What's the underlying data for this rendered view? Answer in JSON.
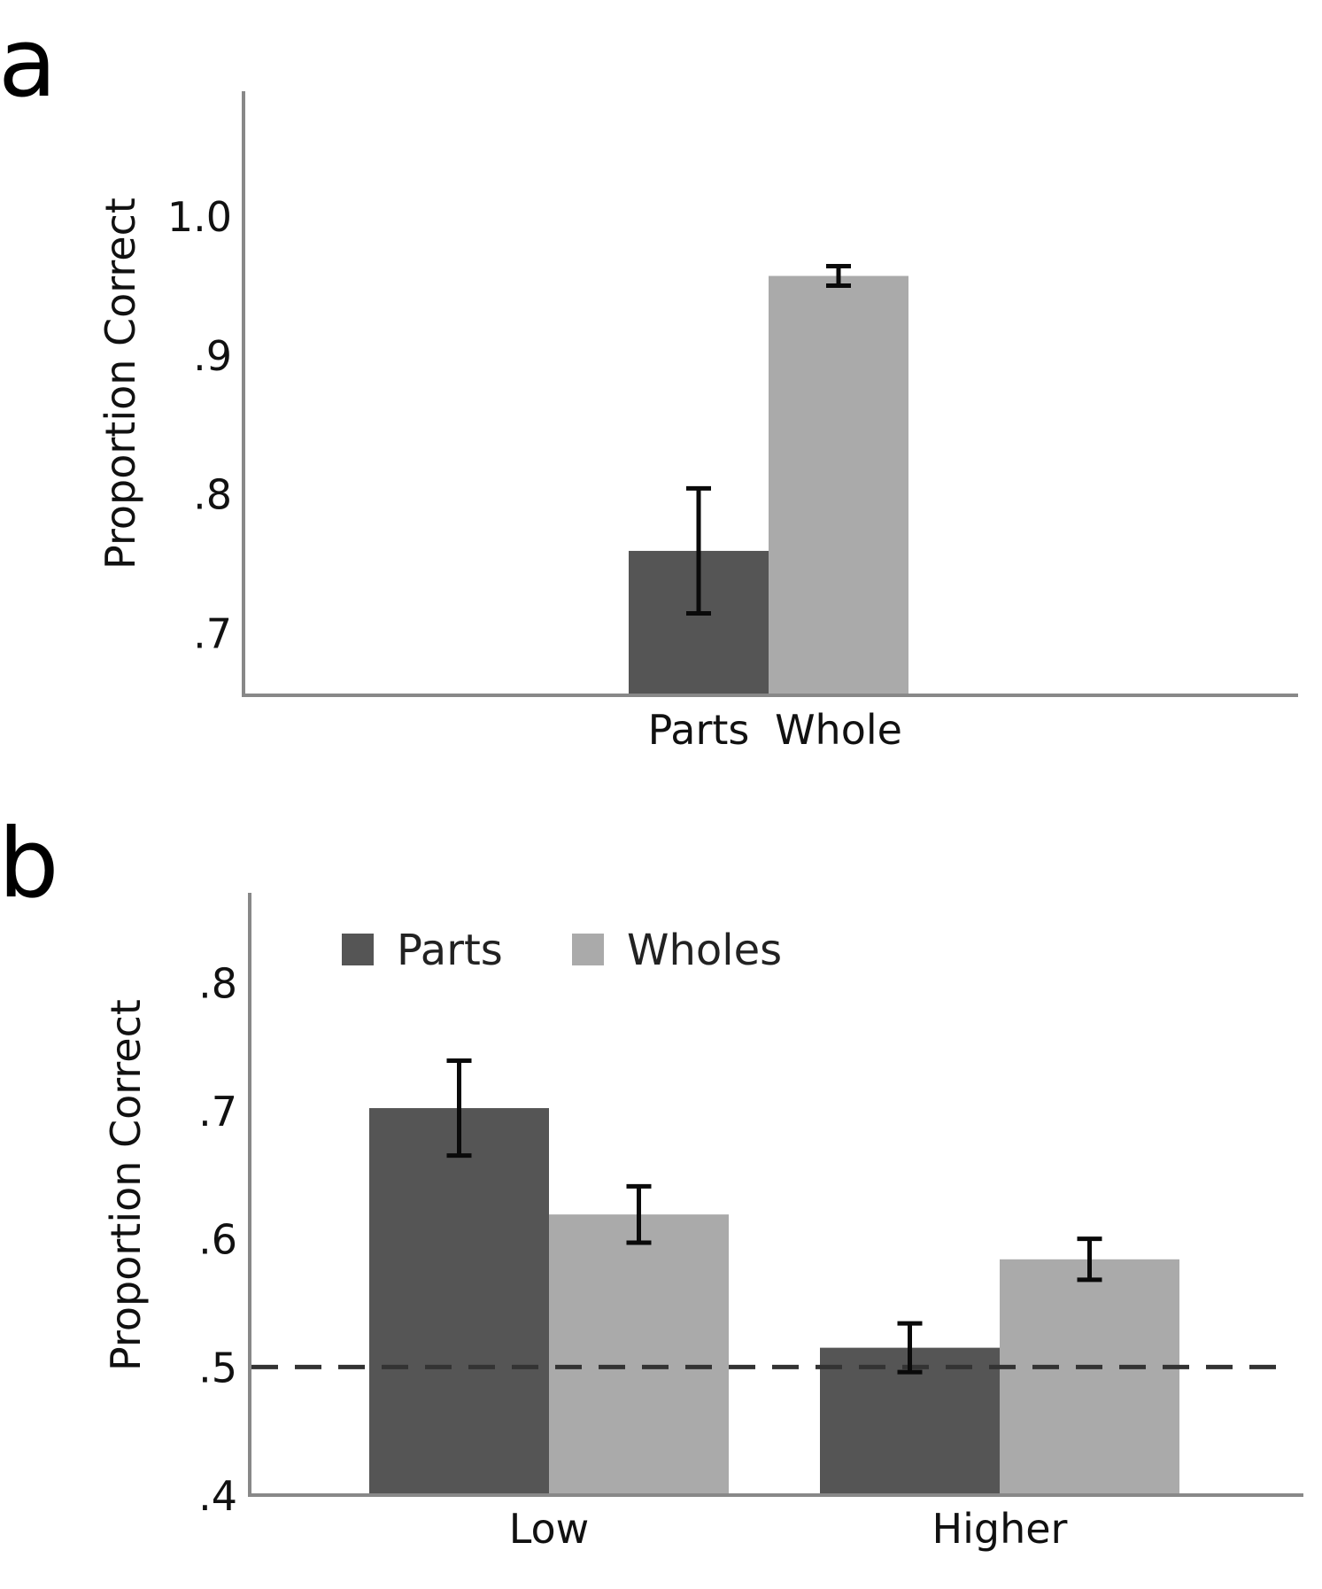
{
  "chart_data": [
    {
      "type": "bar",
      "panel_label": "a",
      "title": "",
      "xlabel": "",
      "ylabel": "Proportion Correct",
      "ylim": [
        0.655,
        1.09
      ],
      "yticks": [
        0.7,
        0.8,
        0.9,
        1.0
      ],
      "ytick_labels": [
        ".7",
        ".8",
        ".9",
        "1.0"
      ],
      "categories": [
        "Parts",
        "Whole"
      ],
      "values": [
        0.759,
        0.957
      ],
      "errors": [
        0.045,
        0.007
      ],
      "colors": [
        "#555555",
        "#aaaaaa"
      ],
      "grid": false
    },
    {
      "type": "bar",
      "panel_label": "b",
      "title": "",
      "xlabel": "",
      "ylabel": "Proportion Correct",
      "ylim": [
        0.4,
        0.87
      ],
      "yticks": [
        0.4,
        0.5,
        0.6,
        0.7,
        0.8
      ],
      "ytick_labels": [
        ".4",
        ".5",
        ".6",
        ".7",
        ".8"
      ],
      "categories": [
        "Low",
        "Higher"
      ],
      "series": [
        {
          "name": "Parts",
          "values": [
            0.702,
            0.515
          ],
          "errors": [
            0.037,
            0.019
          ],
          "color": "#555555"
        },
        {
          "name": "Wholes",
          "values": [
            0.619,
            0.584
          ],
          "errors": [
            0.022,
            0.016
          ],
          "color": "#aaaaaa"
        }
      ],
      "reference_line": 0.5,
      "legend": "top-left",
      "grid": false
    }
  ]
}
